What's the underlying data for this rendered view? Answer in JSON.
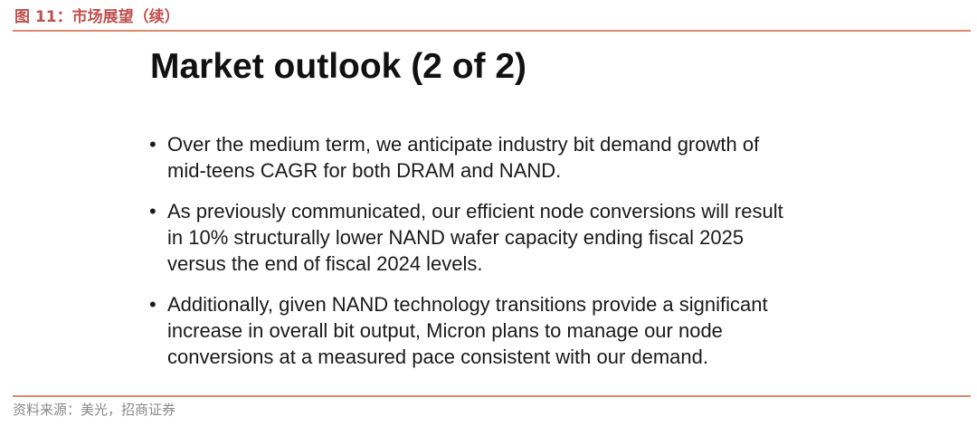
{
  "figure": {
    "caption": "图 11：市场展望（续）"
  },
  "slide": {
    "title": "Market outlook (2 of 2)",
    "bullet_symbol": "•",
    "bullets": [
      {
        "lines": [
          "Over the medium term, we anticipate industry bit demand growth of",
          "mid-teens CAGR for both DRAM and NAND."
        ]
      },
      {
        "lines": [
          "As previously communicated, our efficient node conversions will result",
          "in 10% structurally lower NAND wafer capacity ending fiscal 2025",
          "versus the end of fiscal 2024 levels."
        ]
      },
      {
        "lines": [
          "Additionally, given NAND technology transitions provide a significant",
          "increase in overall bit output, Micron plans to manage our node",
          "conversions at a measured pace consistent with our demand."
        ]
      }
    ]
  },
  "footer": {
    "source": "资料来源：美光，招商证券"
  },
  "colors": {
    "accent": "#c0504d",
    "rule": "#d88a6c",
    "source_text": "#888888"
  }
}
